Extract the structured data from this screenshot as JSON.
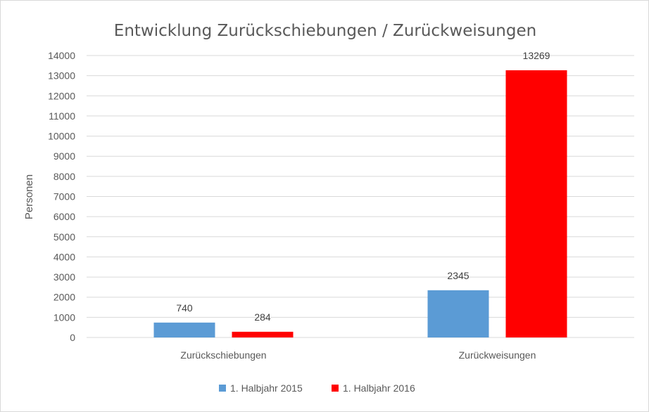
{
  "chart_data": {
    "type": "bar",
    "title": "Entwicklung Zurückschiebungen / Zurückweisungen",
    "xlabel": "",
    "ylabel": "Personen",
    "categories": [
      "Zurückschiebungen",
      "Zurückweisungen"
    ],
    "series": [
      {
        "name": "1. Halbjahr 2015",
        "values": [
          740,
          2345
        ],
        "color": "#5b9bd5"
      },
      {
        "name": "1. Halbjahr 2016",
        "values": [
          284,
          13269
        ],
        "color": "#ff0000"
      }
    ],
    "ylim": [
      0,
      14000
    ],
    "yticks": [
      0,
      1000,
      2000,
      3000,
      4000,
      5000,
      6000,
      7000,
      8000,
      9000,
      10000,
      11000,
      12000,
      13000,
      14000
    ],
    "grid": true,
    "legend_position": "bottom",
    "data_labels": true
  }
}
